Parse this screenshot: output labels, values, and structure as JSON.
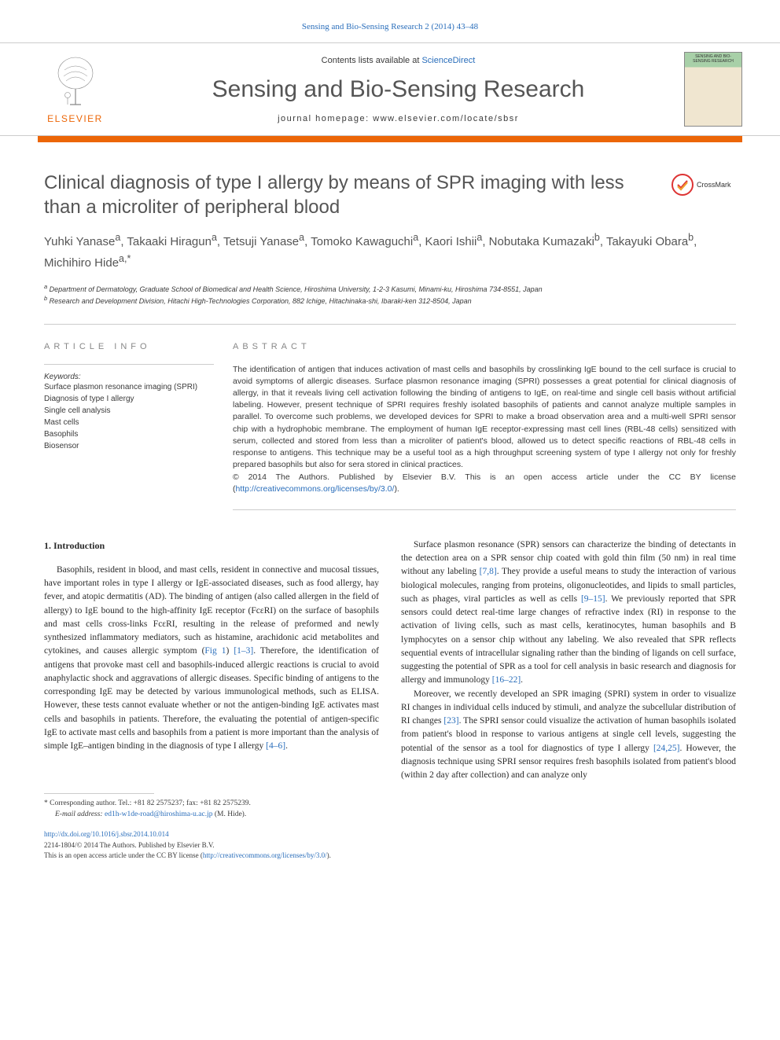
{
  "header": {
    "citation_link": "Sensing and Bio-Sensing Research 2 (2014) 43–48",
    "contents_text": "Contents lists available at ",
    "contents_link": "ScienceDirect",
    "journal_title": "Sensing and Bio-Sensing Research",
    "homepage_label": "journal homepage: www.elsevier.com/locate/sbsr",
    "elsevier_text": "ELSEVIER",
    "cover_text": "SENSING AND BIO-SENSING RESEARCH",
    "crossmark_text": "CrossMark"
  },
  "article": {
    "title": "Clinical diagnosis of type I allergy by means of SPR imaging with less than a microliter of peripheral blood",
    "authors": "Yuhki Yanase<sup>a</sup>, Takaaki Hiragun<sup>a</sup>, Tetsuji Yanase<sup>a</sup>, Tomoko Kawaguchi<sup>a</sup>, Kaori Ishii<sup>a</sup>, Nobutaka Kumazaki<sup>b</sup>, Takayuki Obara<sup>b</sup>, Michihiro Hide<sup>a,*</sup>",
    "affiliations": [
      "<sup>a</sup> Department of Dermatology, Graduate School of Biomedical and Health Science, Hiroshima University, 1-2-3 Kasumi, Minami-ku, Hiroshima 734-8551, Japan",
      "<sup>b</sup> Research and Development Division, Hitachi High-Technologies Corporation, 882 Ichige, Hitachinaka-shi, Ibaraki-ken 312-8504, Japan"
    ],
    "info_heading": "ARTICLE INFO",
    "abstract_heading": "ABSTRACT",
    "keywords_label": "Keywords:",
    "keywords": [
      "Surface plasmon resonance imaging (SPRI)",
      "Diagnosis of type I allergy",
      "Single cell analysis",
      "Mast cells",
      "Basophils",
      "Biosensor"
    ],
    "abstract": "The identification of antigen that induces activation of mast cells and basophils by crosslinking IgE bound to the cell surface is crucial to avoid symptoms of allergic diseases. Surface plasmon resonance imaging (SPRI) possesses a great potential for clinical diagnosis of allergy, in that it reveals living cell activation following the binding of antigens to IgE, on real-time and single cell basis without artificial labeling. However, present technique of SPRI requires freshly isolated basophils of patients and cannot analyze multiple samples in parallel. To overcome such problems, we developed devices for SPRI to make a broad observation area and a multi-well SPRI sensor chip with a hydrophobic membrane. The employment of human IgE receptor-expressing mast cell lines (RBL-48 cells) sensitized with serum, collected and stored from less than a microliter of patient's blood, allowed us to detect specific reactions of RBL-48 cells in response to antigens. This technique may be a useful tool as a high throughput screening system of type I allergy not only for freshly prepared basophils but also for sera stored in clinical practices.",
    "copyright": "© 2014 The Authors. Published by Elsevier B.V. This is an open access article under the CC BY license (",
    "license_url": "http://creativecommons.org/licenses/by/3.0/",
    "license_close": ")."
  },
  "body": {
    "section_heading": "1. Introduction",
    "col1_p1": "Basophils, resident in blood, and mast cells, resident in connective and mucosal tissues, have important roles in type I allergy or IgE-associated diseases, such as food allergy, hay fever, and atopic dermatitis (AD). The binding of antigen (also called allergen in the field of allergy) to IgE bound to the high-affinity IgE receptor (FcεRI) on the surface of basophils and mast cells cross-links FcεRI, resulting in the release of preformed and newly synthesized inflammatory mediators, such as histamine, arachidonic acid metabolites and cytokines, and causes allergic symptom (<span class=\"ref-link\">Fig 1</span>) <span class=\"ref-link\">[1–3]</span>. Therefore, the identification of antigens that provoke mast cell and basophils-induced allergic reactions is crucial to avoid anaphylactic shock and aggravations of allergic diseases. Specific binding of antigens to the corresponding IgE may be detected by various immunological methods, such as ELISA. However, these tests cannot evaluate whether or not the antigen-binding IgE activates mast cells and basophils in patients. Therefore, the evaluating the potential of antigen-specific IgE to activate mast cells and basophils from a patient is more important than the analysis of simple IgE–antigen binding in the diagnosis of type I allergy <span class=\"ref-link\">[4–6]</span>.",
    "col2_p1": "Surface plasmon resonance (SPR) sensors can characterize the binding of detectants in the detection area on a SPR sensor chip coated with gold thin film (50 nm) in real time without any labeling <span class=\"ref-link\">[7,8]</span>. They provide a useful means to study the interaction of various biological molecules, ranging from proteins, oligonucleotides, and lipids to small particles, such as phages, viral particles as well as cells <span class=\"ref-link\">[9–15]</span>. We previously reported that SPR sensors could detect real-time large changes of refractive index (RI) in response to the activation of living cells, such as mast cells, keratinocytes, human basophils and B lymphocytes on a sensor chip without any labeling. We also revealed that SPR reflects sequential events of intracellular signaling rather than the binding of ligands on cell surface, suggesting the potential of SPR as a tool for cell analysis in basic research and diagnosis for allergy and immunology <span class=\"ref-link\">[16–22]</span>.",
    "col2_p2": "Moreover, we recently developed an SPR imaging (SPRI) system in order to visualize RI changes in individual cells induced by stimuli, and analyze the subcellular distribution of RI changes <span class=\"ref-link\">[23]</span>. The SPRI sensor could visualize the activation of human basophils isolated from patient's blood in response to various antigens at single cell levels, suggesting the potential of the sensor as a tool for diagnostics of type I allergy <span class=\"ref-link\">[24,25]</span>. However, the diagnosis technique using SPRI sensor requires fresh basophils isolated from patient's blood (within 2 day after collection) and can analyze only"
  },
  "footer": {
    "corresponding_label": "* Corresponding author. Tel.: +81 82 2575237; fax: +81 82 2575239.",
    "email_label": "E-mail address: ",
    "email": "ed1h-w1de-road@hiroshima-u.ac.jp",
    "email_name": " (M. Hide).",
    "doi": "http://dx.doi.org/10.1016/j.sbsr.2014.10.014",
    "issn_line": "2214-1804/© 2014 The Authors. Published by Elsevier B.V.",
    "license_line": "This is an open access article under the CC BY license (",
    "license_url": "http://creativecommons.org/licenses/by/3.0/",
    "license_close": ")."
  },
  "colors": {
    "orange": "#ec6607",
    "blue_link": "#2a6ebb",
    "body_text": "#3a3a3a",
    "heading_gray": "#555555",
    "border_gray": "#cccccc"
  }
}
